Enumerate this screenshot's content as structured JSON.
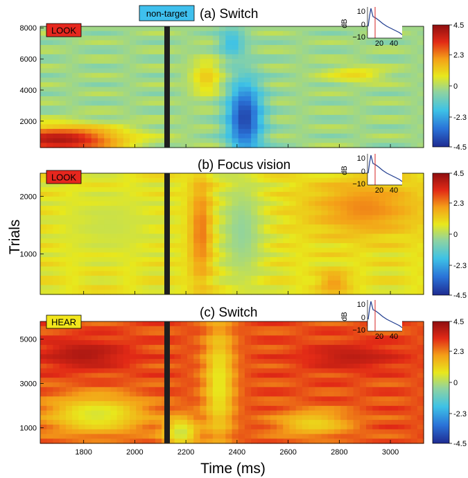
{
  "figure": {
    "ylabel": "Trials",
    "xlabel": "Time (ms)",
    "stimulus_tag": "non-target",
    "stimulus_time_ms": 2130
  },
  "colormap": {
    "min": -4.5,
    "max": 4.5,
    "ticks": [
      "4.5",
      "2.3",
      "0",
      "-2.3",
      "-4.5"
    ],
    "stops": [
      "#1f2b91",
      "#2a73d8",
      "#3ec2e6",
      "#8fd3a0",
      "#e8e81c",
      "#f4a018",
      "#e22a16",
      "#8e0e10"
    ]
  },
  "chart_data": [
    {
      "type": "heatmap",
      "title": "(a) Switch",
      "badge": "LOOK",
      "badge_color": "#e6271e",
      "xlim": [
        1630,
        3130
      ],
      "ylim": [
        300,
        8100
      ],
      "ytick_values": [
        2000,
        4000,
        6000,
        8000
      ],
      "ytick_labels": [
        "2000",
        "4000",
        "6000",
        "8000"
      ],
      "xtick_values": [
        1800,
        2000,
        2200,
        2400,
        2600,
        2800,
        3000
      ],
      "xtick_labels": [
        "1800",
        "2000",
        "2200",
        "2400",
        "2600",
        "2800",
        "3000"
      ],
      "base_value": -0.4,
      "features": [
        {
          "t": 2430,
          "trial": 2200,
          "dt": 70,
          "dtrial": 2400,
          "value": -4.0
        },
        {
          "t": 2380,
          "trial": 7000,
          "dt": 50,
          "dtrial": 1000,
          "value": -2.0
        },
        {
          "t": 1700,
          "trial": 800,
          "dt": 260,
          "dtrial": 900,
          "value": 4.0
        },
        {
          "t": 2280,
          "trial": 4800,
          "dt": 60,
          "dtrial": 1200,
          "value": 1.2
        },
        {
          "t": 2860,
          "trial": 5000,
          "dt": 120,
          "dtrial": 500,
          "value": 1.0
        }
      ],
      "inset": {
        "ylabel": "dB",
        "yticks": [
          "10",
          "0",
          "−10"
        ],
        "xticks": [
          "20",
          "40"
        ]
      }
    },
    {
      "type": "heatmap",
      "title": "(b) Focus vision",
      "badge": "LOOK",
      "badge_color": "#e6271e",
      "xlim": [
        1630,
        3130
      ],
      "ylim": [
        300,
        2400
      ],
      "ytick_values": [
        1000,
        2000
      ],
      "ytick_labels": [
        "1000",
        "2000"
      ],
      "xtick_values": [
        1800,
        2000,
        2200,
        2400,
        2600,
        2800,
        3000
      ],
      "xtick_labels": [
        "1800",
        "2000",
        "2200",
        "2400",
        "2600",
        "2800",
        "3000"
      ],
      "base_value": 0.7,
      "features": [
        {
          "t": 2260,
          "trial": 1400,
          "dt": 45,
          "dtrial": 900,
          "value": 2.6
        },
        {
          "t": 2420,
          "trial": 1400,
          "dt": 90,
          "dtrial": 900,
          "value": -0.6
        },
        {
          "t": 2900,
          "trial": 1800,
          "dt": 220,
          "dtrial": 500,
          "value": 2.2
        },
        {
          "t": 2780,
          "trial": 500,
          "dt": 60,
          "dtrial": 200,
          "value": 2.0
        },
        {
          "t": 1900,
          "trial": 1500,
          "dt": 200,
          "dtrial": 600,
          "value": 0.2
        }
      ],
      "inset": {
        "ylabel": "dB",
        "yticks": [
          "10",
          "0",
          "−10"
        ],
        "xticks": [
          "20",
          "40"
        ]
      }
    },
    {
      "type": "heatmap",
      "title": "(c) Switch",
      "badge": "HEAR",
      "badge_color": "#f2e61c",
      "xlim": [
        1630,
        3130
      ],
      "ylim": [
        300,
        5800
      ],
      "ytick_values": [
        1000,
        3000,
        5000
      ],
      "ytick_labels": [
        "1000",
        "3000",
        "5000"
      ],
      "xtick_values": [
        1800,
        2000,
        2200,
        2400,
        2600,
        2800,
        3000
      ],
      "xtick_labels": [
        "1800",
        "2000",
        "2200",
        "2400",
        "2600",
        "2800",
        "3000"
      ],
      "base_value": 2.8,
      "features": [
        {
          "t": 2330,
          "trial": 3000,
          "dt": 60,
          "dtrial": 2800,
          "value": 0.6
        },
        {
          "t": 1850,
          "trial": 1600,
          "dt": 200,
          "dtrial": 900,
          "value": 0.4
        },
        {
          "t": 2180,
          "trial": 800,
          "dt": 70,
          "dtrial": 700,
          "value": 0.2
        },
        {
          "t": 1800,
          "trial": 4300,
          "dt": 180,
          "dtrial": 700,
          "value": 4.0
        },
        {
          "t": 2850,
          "trial": 4200,
          "dt": 200,
          "dtrial": 600,
          "value": 3.8
        },
        {
          "t": 2700,
          "trial": 1200,
          "dt": 150,
          "dtrial": 600,
          "value": 1.0
        }
      ],
      "inset": {
        "ylabel": "dB",
        "yticks": [
          "10",
          "0",
          "−10"
        ],
        "xticks": [
          "20",
          "40"
        ]
      }
    }
  ]
}
